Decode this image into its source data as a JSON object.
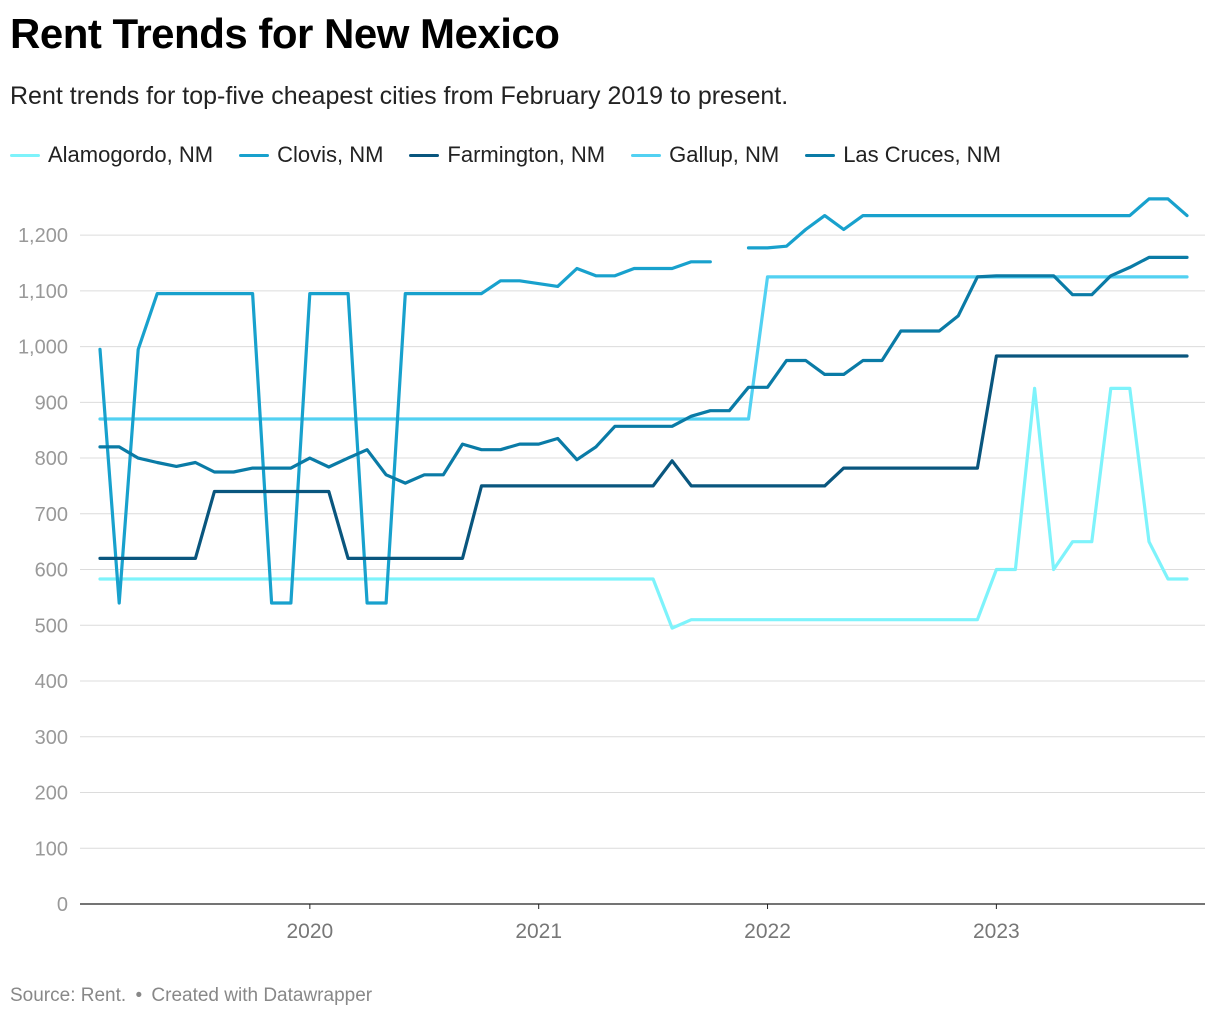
{
  "title": "Rent Trends for New Mexico",
  "subtitle": "Rent trends for top-five cheapest cities from February 2019 to present.",
  "footer": {
    "source": "Source: Rent.",
    "created": "Created with Datawrapper"
  },
  "colors": {
    "Alamogordo, NM": "#7ef3fb",
    "Clovis, NM": "#18a1cd",
    "Farmington, NM": "#09567e",
    "Gallup, NM": "#52d1f2",
    "Las Cruces, NM": "#0a7ba6"
  },
  "chart_data": {
    "type": "line",
    "x_axis": {
      "ticks": [
        "2020",
        "2021",
        "2022",
        "2023"
      ],
      "start": "February 2019"
    },
    "y_axis": {
      "ticks": [
        "0",
        "100",
        "200",
        "300",
        "400",
        "500",
        "600",
        "700",
        "800",
        "900",
        "1,000",
        "1,100",
        "1,200"
      ],
      "range": [
        0,
        1200
      ]
    },
    "grid": true,
    "legend_position": "top-left",
    "series": [
      {
        "name": "Alamogordo, NM",
        "values": [
          [
            2019.083,
            583
          ],
          [
            2021.5,
            583
          ],
          [
            2021.583,
            495
          ],
          [
            2021.667,
            510
          ],
          [
            2022.917,
            510
          ],
          [
            2023.0,
            600
          ],
          [
            2023.083,
            600
          ],
          [
            2023.167,
            925
          ],
          [
            2023.25,
            600
          ],
          [
            2023.333,
            650
          ],
          [
            2023.417,
            650
          ],
          [
            2023.5,
            925
          ],
          [
            2023.583,
            925
          ],
          [
            2023.667,
            650
          ],
          [
            2023.75,
            583
          ],
          [
            2023.833,
            583
          ]
        ]
      },
      {
        "name": "Clovis, NM",
        "values": [
          [
            2019.083,
            995
          ],
          [
            2019.167,
            540
          ],
          [
            2019.25,
            995
          ],
          [
            2019.333,
            1095
          ],
          [
            2019.75,
            1095
          ],
          [
            2019.833,
            540
          ],
          [
            2019.917,
            540
          ],
          [
            2020.0,
            1095
          ],
          [
            2020.167,
            1095
          ],
          [
            2020.25,
            540
          ],
          [
            2020.333,
            540
          ],
          [
            2020.417,
            1095
          ],
          [
            2020.75,
            1095
          ],
          [
            2020.833,
            1118
          ],
          [
            2020.917,
            1118
          ],
          [
            2021.083,
            1108
          ],
          [
            2021.167,
            1140
          ],
          [
            2021.25,
            1127
          ],
          [
            2021.333,
            1127
          ],
          [
            2021.417,
            1140
          ],
          [
            2021.583,
            1140
          ],
          [
            2021.667,
            1152
          ],
          [
            2021.75,
            1152
          ],
          null,
          [
            2021.917,
            1177
          ],
          [
            2022.0,
            1177
          ],
          [
            2022.083,
            1180
          ],
          [
            2022.167,
            1210
          ],
          [
            2022.25,
            1235
          ],
          [
            2022.333,
            1210
          ],
          [
            2022.417,
            1235
          ],
          [
            2023.583,
            1235
          ],
          [
            2023.667,
            1265
          ],
          [
            2023.75,
            1265
          ],
          [
            2023.833,
            1235
          ]
        ]
      },
      {
        "name": "Farmington, NM",
        "values": [
          [
            2019.083,
            620
          ],
          [
            2019.5,
            620
          ],
          [
            2019.583,
            740
          ],
          [
            2020.083,
            740
          ],
          [
            2020.167,
            620
          ],
          [
            2020.667,
            620
          ],
          [
            2020.75,
            750
          ],
          [
            2021.5,
            750
          ],
          [
            2021.583,
            795
          ],
          [
            2021.667,
            750
          ],
          [
            2022.25,
            750
          ],
          [
            2022.333,
            782
          ],
          [
            2022.917,
            782
          ],
          [
            2023.0,
            983
          ],
          [
            2023.833,
            983
          ]
        ]
      },
      {
        "name": "Gallup, NM",
        "values": [
          [
            2019.083,
            870
          ],
          [
            2021.917,
            870
          ],
          [
            2022.0,
            1125
          ],
          [
            2023.833,
            1125
          ]
        ]
      },
      {
        "name": "Las Cruces, NM",
        "values": [
          [
            2019.083,
            820
          ],
          [
            2019.167,
            820
          ],
          [
            2019.25,
            800
          ],
          [
            2019.333,
            792
          ],
          [
            2019.417,
            785
          ],
          [
            2019.5,
            792
          ],
          [
            2019.583,
            775
          ],
          [
            2019.667,
            775
          ],
          [
            2019.75,
            782
          ],
          [
            2019.917,
            782
          ],
          [
            2020.0,
            800
          ],
          [
            2020.083,
            784
          ],
          [
            2020.167,
            800
          ],
          [
            2020.25,
            815
          ],
          [
            2020.333,
            770
          ],
          [
            2020.417,
            755
          ],
          [
            2020.5,
            770
          ],
          [
            2020.583,
            770
          ],
          [
            2020.667,
            825
          ],
          [
            2020.75,
            815
          ],
          [
            2020.833,
            815
          ],
          [
            2020.917,
            825
          ],
          [
            2021.0,
            825
          ],
          [
            2021.083,
            835
          ],
          [
            2021.167,
            797
          ],
          [
            2021.25,
            820
          ],
          [
            2021.333,
            857
          ],
          [
            2021.583,
            857
          ],
          [
            2021.667,
            875
          ],
          [
            2021.75,
            885
          ],
          [
            2021.833,
            885
          ],
          [
            2021.917,
            927
          ],
          [
            2022.0,
            927
          ],
          [
            2022.083,
            975
          ],
          [
            2022.167,
            975
          ],
          [
            2022.25,
            950
          ],
          [
            2022.333,
            950
          ],
          [
            2022.417,
            975
          ],
          [
            2022.5,
            975
          ],
          [
            2022.583,
            1028
          ],
          [
            2022.75,
            1028
          ],
          [
            2022.833,
            1055
          ],
          [
            2022.917,
            1125
          ],
          [
            2023.0,
            1127
          ],
          [
            2023.25,
            1127
          ],
          [
            2023.333,
            1093
          ],
          [
            2023.417,
            1093
          ],
          [
            2023.5,
            1127
          ],
          [
            2023.583,
            1142
          ],
          [
            2023.667,
            1160
          ],
          [
            2023.833,
            1160
          ]
        ]
      }
    ]
  }
}
